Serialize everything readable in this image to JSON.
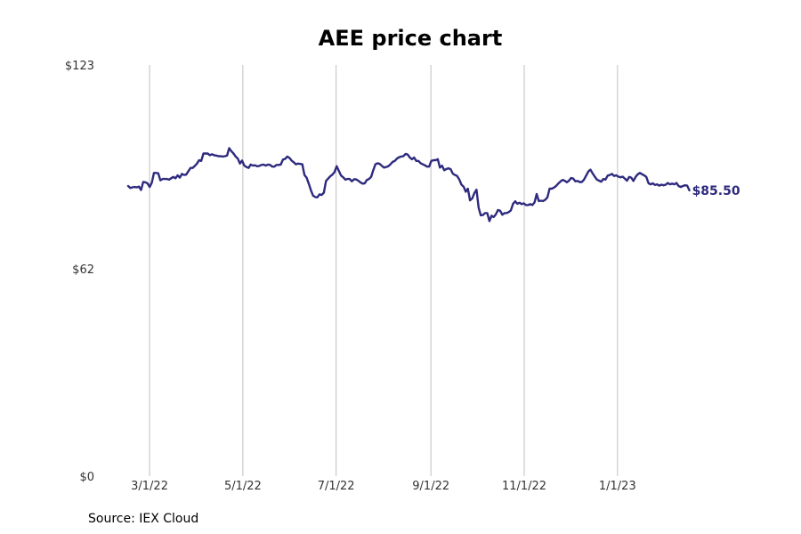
{
  "chart_data": {
    "type": "line",
    "title": "AEE price chart",
    "source": "Source: IEX Cloud",
    "y_ticks": [
      "$0",
      "$62",
      "$123"
    ],
    "y_tick_values": [
      0,
      62,
      123
    ],
    "ylim": [
      0,
      123
    ],
    "x_ticks": [
      "3/1/22",
      "5/1/22",
      "7/1/22",
      "9/1/22",
      "11/1/22",
      "1/1/23"
    ],
    "x_tick_dates": [
      "2022-03-01",
      "2022-05-01",
      "2022-07-01",
      "2022-09-01",
      "2022-11-01",
      "2023-01-01"
    ],
    "xlim": [
      "2022-02-15",
      "2023-02-19"
    ],
    "grid": "vertical",
    "legend": "none",
    "last_label": "$85.50",
    "series_color": "#2e2a7e",
    "series": [
      {
        "x": [
          "2022-02-15",
          "2022-02-16",
          "2022-02-18",
          "2022-02-22",
          "2022-02-24",
          "2022-02-25",
          "2022-02-28",
          "2022-03-02",
          "2022-03-04",
          "2022-03-07",
          "2022-03-09",
          "2022-03-11",
          "2022-03-14",
          "2022-03-17",
          "2022-03-21",
          "2022-03-24",
          "2022-03-28",
          "2022-04-01",
          "2022-04-05",
          "2022-04-07",
          "2022-04-12",
          "2022-04-18",
          "2022-04-22",
          "2022-04-25",
          "2022-04-28",
          "2022-05-03",
          "2022-05-09",
          "2022-05-13",
          "2022-05-18",
          "2022-05-23",
          "2022-05-26",
          "2022-06-01",
          "2022-06-06",
          "2022-06-09",
          "2022-06-13",
          "2022-06-16",
          "2022-06-21",
          "2022-06-24",
          "2022-06-29",
          "2022-07-01",
          "2022-07-06",
          "2022-07-11",
          "2022-07-15",
          "2022-07-19",
          "2022-07-22",
          "2022-07-26",
          "2022-07-29",
          "2022-08-03",
          "2022-08-08",
          "2022-08-11",
          "2022-08-16",
          "2022-08-19",
          "2022-08-23",
          "2022-08-26",
          "2022-08-30",
          "2022-09-01",
          "2022-09-06",
          "2022-09-09",
          "2022-09-12",
          "2022-09-15",
          "2022-09-20",
          "2022-09-23",
          "2022-09-28",
          "2022-09-30",
          "2022-10-04",
          "2022-10-07",
          "2022-10-11",
          "2022-10-13",
          "2022-10-17",
          "2022-10-20",
          "2022-10-25",
          "2022-10-28",
          "2022-11-01",
          "2022-11-04",
          "2022-11-07",
          "2022-11-09",
          "2022-11-14",
          "2022-11-18",
          "2022-11-22",
          "2022-11-28",
          "2022-12-01",
          "2022-12-06",
          "2022-12-09",
          "2022-12-14",
          "2022-12-19",
          "2022-12-22",
          "2022-12-27",
          "2022-12-30",
          "2023-01-03",
          "2023-01-06",
          "2023-01-10",
          "2023-01-13",
          "2023-01-18",
          "2023-01-23",
          "2023-01-26",
          "2023-01-31",
          "2023-02-03",
          "2023-02-08",
          "2023-02-13",
          "2023-02-16",
          "2023-02-17"
        ],
        "y": [
          86.5,
          86.0,
          86.5,
          85.5,
          87.5,
          87.5,
          87.5,
          90.5,
          91.0,
          88.5,
          88.0,
          88.5,
          89.5,
          89.5,
          91.5,
          93.5,
          95.0,
          96.5,
          97.5,
          97.5,
          97.0,
          96.5,
          98.5,
          96.0,
          95.0,
          93.5,
          93.0,
          93.5,
          93.0,
          94.0,
          95.5,
          94.5,
          93.5,
          89.5,
          85.0,
          83.5,
          84.5,
          89.5,
          92.0,
          92.5,
          89.0,
          88.5,
          88.0,
          87.5,
          89.0,
          91.5,
          93.5,
          93.0,
          94.0,
          95.0,
          96.0,
          96.5,
          95.5,
          94.5,
          93.0,
          93.5,
          94.0,
          95.5,
          92.5,
          91.5,
          88.5,
          85.5,
          82.5,
          81.0,
          80.5,
          78.0,
          76.5,
          76.0,
          77.5,
          78.5,
          81.0,
          81.5,
          81.5,
          82.0,
          83.0,
          83.5,
          85.0,
          87.0,
          88.0,
          88.5,
          88.0,
          89.5,
          90.5,
          89.0,
          87.5,
          89.0,
          89.0,
          88.5,
          88.0,
          89.0,
          89.5,
          89.0,
          87.0,
          86.5,
          87.5,
          87.5,
          86.0,
          86.5,
          86.0,
          85.5,
          85.5
        ],
        "dense": [
          86.8,
          86.2,
          86.4,
          86.5,
          86.4,
          86.6,
          85.6,
          88.0,
          87.9,
          87.6,
          86.5,
          87.8,
          90.7,
          90.7,
          90.6,
          88.5,
          88.9,
          88.9,
          88.9,
          88.7,
          89.1,
          89.5,
          89.1,
          90.0,
          89.3,
          90.4,
          90.1,
          90.2,
          91.2,
          92.2,
          92.2,
          92.8,
          93.5,
          94.5,
          94.3,
          96.5,
          96.5,
          96.5,
          96.0,
          96.3,
          96.0,
          95.9,
          95.7,
          95.7,
          95.6,
          95.7,
          95.9,
          98.1,
          97.2,
          96.5,
          95.6,
          95.0,
          93.5,
          94.4,
          92.9,
          92.5,
          92.2,
          93.2,
          92.9,
          93.0,
          92.7,
          92.8,
          93.1,
          93.2,
          92.9,
          93.2,
          93.1,
          92.6,
          92.6,
          93.1,
          93.1,
          93.2,
          94.7,
          94.9,
          95.6,
          95.2,
          94.4,
          93.9,
          93.3,
          93.5,
          93.4,
          93.3,
          90.1,
          89.3,
          87.5,
          85.5,
          83.9,
          83.5,
          83.4,
          84.3,
          84.1,
          84.8,
          88.3,
          89.0,
          89.7,
          90.2,
          91.0,
          92.7,
          91.3,
          89.9,
          89.4,
          88.7,
          88.9,
          88.9,
          88.2,
          88.8,
          88.8,
          88.4,
          87.9,
          87.5,
          87.6,
          88.6,
          88.9,
          89.5,
          91.5,
          93.3,
          93.6,
          93.4,
          92.8,
          92.3,
          92.5,
          92.7,
          93.3,
          94.0,
          94.3,
          95.0,
          95.4,
          95.6,
          95.7,
          96.4,
          96.2,
          95.3,
          94.8,
          95.3,
          94.3,
          94.3,
          93.6,
          93.3,
          93.0,
          92.6,
          92.6,
          94.3,
          94.5,
          94.5,
          94.8,
          92.3,
          92.9,
          91.5,
          91.9,
          92.1,
          91.8,
          90.5,
          90.1,
          89.8,
          88.7,
          87.2,
          86.6,
          85.1,
          86.0,
          82.5,
          83.1,
          84.7,
          85.7,
          80.3,
          78.0,
          78.1,
          78.7,
          78.7,
          76.3,
          77.9,
          77.5,
          78.3,
          79.6,
          79.4,
          78.2,
          78.7,
          78.7,
          79.0,
          79.5,
          81.5,
          82.2,
          81.5,
          81.8,
          81.4,
          81.6,
          81.1,
          81.1,
          81.4,
          81.1,
          81.9,
          84.4,
          82.3,
          82.4,
          82.3,
          82.7,
          83.4,
          86.0,
          86.0,
          86.3,
          86.8,
          87.5,
          88.1,
          88.6,
          88.4,
          87.9,
          88.4,
          89.2,
          89.0,
          88.2,
          88.3,
          88.0,
          88.0,
          88.7,
          89.9,
          91.1,
          91.7,
          90.6,
          89.6,
          88.7,
          88.4,
          88.1,
          88.9,
          88.7,
          89.9,
          90.1,
          90.4,
          89.8,
          90.0,
          89.6,
          89.4,
          89.6,
          89.0,
          88.4,
          89.5,
          89.3,
          88.3,
          89.5,
          90.3,
          90.7,
          90.3,
          90.0,
          89.5,
          87.6,
          87.3,
          87.6,
          87.1,
          87.3,
          86.9,
          87.2,
          87.0,
          87.2,
          87.7,
          87.3,
          87.5,
          87.3,
          87.7,
          86.8,
          86.5,
          86.8,
          87.0,
          86.9,
          85.5
        ]
      }
    ]
  }
}
